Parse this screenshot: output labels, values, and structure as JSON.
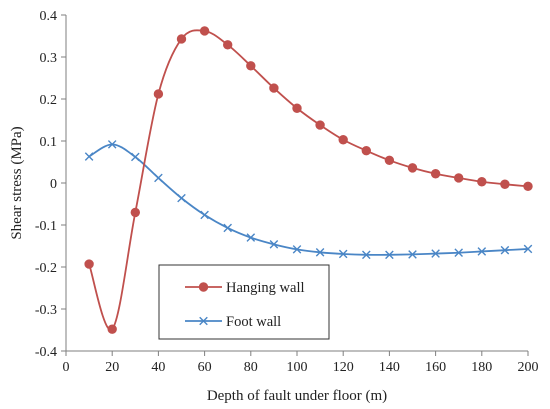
{
  "chart_data": {
    "type": "line",
    "xlabel": "Depth of fault under floor (m)",
    "ylabel": "Shear stress (MPa)",
    "xlim": [
      0,
      200
    ],
    "ylim": [
      -0.4,
      0.4
    ],
    "xticks": [
      0,
      20,
      40,
      60,
      80,
      100,
      120,
      140,
      160,
      180,
      200
    ],
    "yticks": [
      -0.4,
      -0.3,
      -0.2,
      -0.1,
      0,
      0.1,
      0.2,
      0.3,
      0.4
    ],
    "xtick_labels": [
      "0",
      "20",
      "40",
      "60",
      "80",
      "100",
      "120",
      "140",
      "160",
      "180",
      "200"
    ],
    "ytick_labels": [
      "-0.4",
      "-0.3",
      "-0.2",
      "-0.1",
      "0",
      "0.1",
      "0.2",
      "0.3",
      "0.4"
    ],
    "grid": false,
    "legend_placement": "bottom-left",
    "series": [
      {
        "name": "Hanging wall",
        "marker": "circle",
        "color": "#c0504d",
        "x": [
          10,
          20,
          30,
          40,
          50,
          60,
          70,
          80,
          90,
          100,
          110,
          120,
          130,
          140,
          150,
          160,
          170,
          180,
          190,
          200
        ],
        "y": [
          -0.193,
          -0.348,
          -0.07,
          0.212,
          0.343,
          0.362,
          0.329,
          0.279,
          0.226,
          0.178,
          0.138,
          0.103,
          0.077,
          0.054,
          0.036,
          0.022,
          0.012,
          0.003,
          -0.003,
          -0.008
        ]
      },
      {
        "name": "Foot wall",
        "marker": "x",
        "color": "#4a86c6",
        "x": [
          10,
          20,
          30,
          40,
          50,
          60,
          70,
          80,
          90,
          100,
          110,
          120,
          130,
          140,
          150,
          160,
          170,
          180,
          190,
          200
        ],
        "y": [
          0.063,
          0.092,
          0.062,
          0.012,
          -0.036,
          -0.076,
          -0.107,
          -0.13,
          -0.146,
          -0.158,
          -0.165,
          -0.169,
          -0.171,
          -0.171,
          -0.17,
          -0.168,
          -0.166,
          -0.163,
          -0.16,
          -0.157
        ]
      }
    ]
  }
}
